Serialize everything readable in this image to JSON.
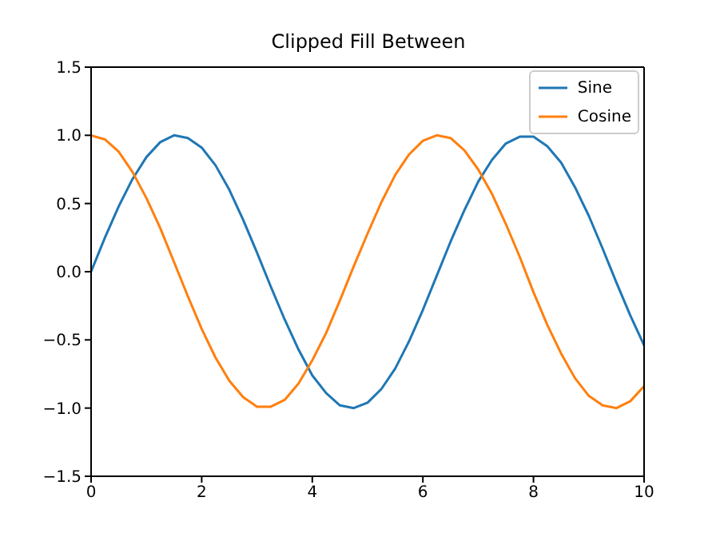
{
  "chart_data": {
    "type": "line",
    "title": "Clipped Fill Between",
    "x": [
      0,
      0.25,
      0.5,
      0.75,
      1,
      1.25,
      1.5,
      1.75,
      2,
      2.25,
      2.5,
      2.75,
      3,
      3.25,
      3.5,
      3.75,
      4,
      4.25,
      4.5,
      4.75,
      5,
      5.25,
      5.5,
      5.75,
      6,
      6.25,
      6.5,
      6.75,
      7,
      7.25,
      7.5,
      7.75,
      8,
      8.25,
      8.5,
      8.75,
      9,
      9.25,
      9.5,
      9.75,
      10
    ],
    "series": [
      {
        "name": "Sine",
        "color": "#1f77b4",
        "values": [
          0,
          0.25,
          0.48,
          0.68,
          0.84,
          0.95,
          1.0,
          0.98,
          0.91,
          0.78,
          0.6,
          0.38,
          0.14,
          -0.11,
          -0.35,
          -0.57,
          -0.76,
          -0.89,
          -0.98,
          -1.0,
          -0.96,
          -0.86,
          -0.71,
          -0.51,
          -0.28,
          -0.03,
          0.22,
          0.45,
          0.66,
          0.82,
          0.94,
          0.99,
          0.99,
          0.92,
          0.8,
          0.62,
          0.41,
          0.17,
          -0.08,
          -0.32,
          -0.54
        ]
      },
      {
        "name": "Cosine",
        "color": "#ff7f0e",
        "values": [
          1,
          0.97,
          0.88,
          0.73,
          0.54,
          0.32,
          0.07,
          -0.18,
          -0.42,
          -0.63,
          -0.8,
          -0.92,
          -0.99,
          -0.99,
          -0.94,
          -0.82,
          -0.65,
          -0.45,
          -0.21,
          0.04,
          0.28,
          0.51,
          0.71,
          0.86,
          0.96,
          1.0,
          0.98,
          0.89,
          0.75,
          0.57,
          0.35,
          0.11,
          -0.15,
          -0.39,
          -0.6,
          -0.78,
          -0.91,
          -0.98,
          -1.0,
          -0.95,
          -0.84
        ]
      }
    ],
    "xlim": [
      0,
      10
    ],
    "xticks": [
      0,
      2,
      4,
      6,
      8,
      10
    ],
    "ylim": [
      -1.5,
      1.5
    ],
    "yticks": [
      {
        "value": -1.5,
        "label": "−1.5"
      },
      {
        "value": -1,
        "label": "−1.0"
      },
      {
        "value": -0.5,
        "label": "−0.5"
      },
      {
        "value": 0,
        "label": "0.0"
      },
      {
        "value": 0.5,
        "label": "0.5"
      },
      {
        "value": 1,
        "label": "1.0"
      },
      {
        "value": 1.5,
        "label": "1.5"
      }
    ],
    "legend": "top right",
    "marker": "none",
    "line_style": "solid"
  }
}
